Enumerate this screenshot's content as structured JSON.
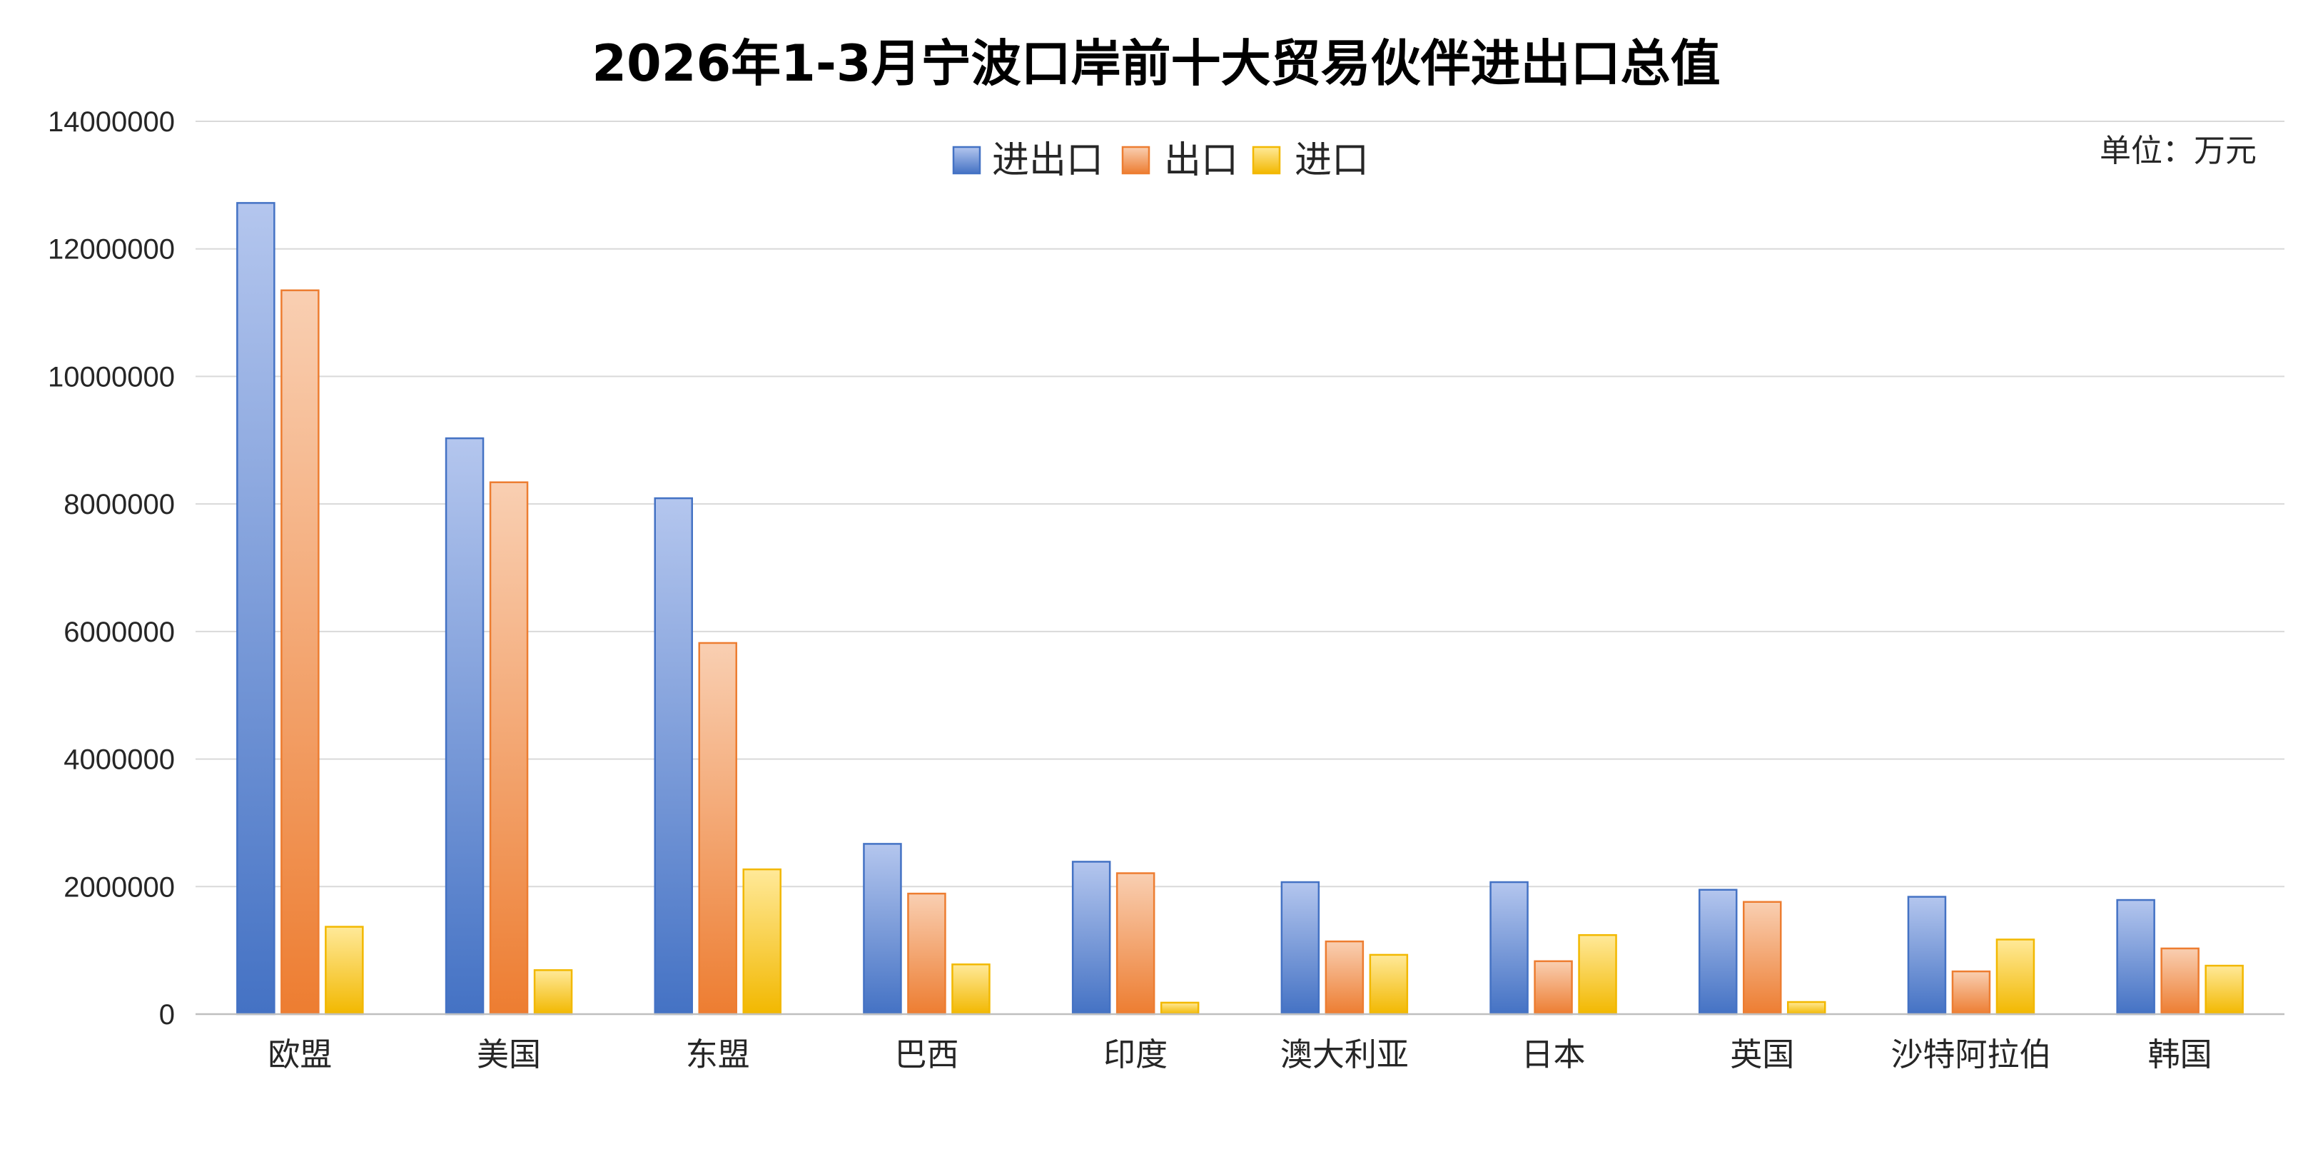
{
  "chart_data": {
    "type": "bar",
    "title": "2026年1-3月宁波口岸前十大贸易伙伴进出口总值",
    "unit_label": "单位：万元",
    "xlabel": "",
    "ylabel": "",
    "ylim": [
      0,
      14000000
    ],
    "yticks": [
      0,
      2000000,
      4000000,
      6000000,
      8000000,
      10000000,
      12000000,
      14000000
    ],
    "grid": true,
    "legend": "top-center",
    "categories": [
      "欧盟",
      "美国",
      "东盟",
      "巴西",
      "印度",
      "澳大利亚",
      "日本",
      "英国",
      "沙特阿拉伯",
      "韩国"
    ],
    "series": [
      {
        "name": "进出口",
        "color": "#4472c4",
        "color_light": "#b4c6ee",
        "values": [
          12720000,
          9030000,
          8090000,
          2670000,
          2390000,
          2070000,
          2070000,
          1950000,
          1840000,
          1790000
        ]
      },
      {
        "name": "出口",
        "color": "#ed7d31",
        "color_light": "#f9cfb2",
        "values": [
          11350000,
          8340000,
          5820000,
          1890000,
          2210000,
          1140000,
          830000,
          1760000,
          670000,
          1030000
        ]
      },
      {
        "name": "进口",
        "color": "#f2b800",
        "color_light": "#ffe999",
        "values": [
          1370000,
          690000,
          2270000,
          780000,
          180000,
          930000,
          1240000,
          190000,
          1170000,
          760000
        ]
      }
    ]
  }
}
